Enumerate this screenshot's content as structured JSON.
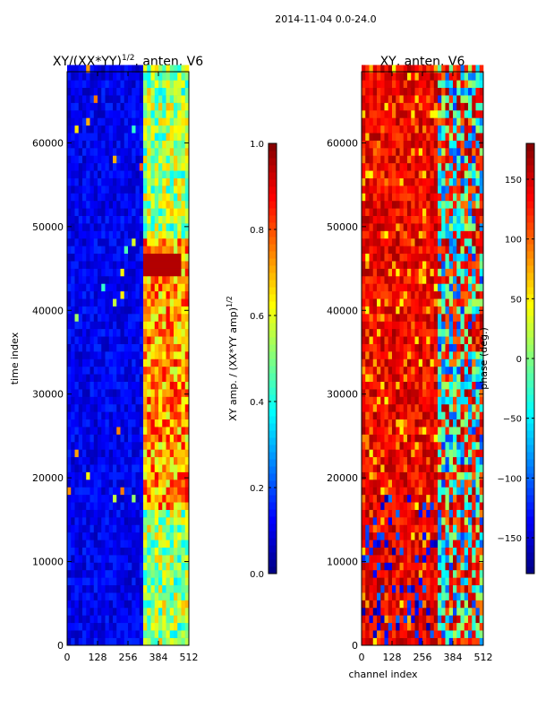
{
  "figure": {
    "suptitle": "2014-11-04 0.0-24.0",
    "shared_xlabel": "channel index"
  },
  "chart_data": [
    {
      "type": "heatmap",
      "title": "XY/(XX*YY)^{1/2}, anten. V6",
      "title_main": "XY/(XX*YY)",
      "title_exp": "1/2",
      "title_tail": ", anten. V6",
      "xlabel": "",
      "ylabel": "time index",
      "xlim": [
        0,
        512
      ],
      "ylim": [
        0,
        68500
      ],
      "xticks": [
        0,
        128,
        256,
        384,
        512
      ],
      "yticks": [
        0,
        10000,
        20000,
        30000,
        40000,
        50000,
        60000
      ],
      "colormap": "jet",
      "colorbar": {
        "label": "XY amp. / (XX*YY amp)^{1/2}",
        "label_main": "XY amp. / (XX*YY amp)",
        "label_exp": "1/2",
        "range": [
          0.0,
          1.0
        ],
        "ticks": [
          0.0,
          0.2,
          0.4,
          0.6,
          0.8,
          1.0
        ],
        "tick_labels": [
          "0.0",
          "0.2",
          "0.4",
          "0.6",
          "0.8",
          "1.0"
        ]
      },
      "features": [
        {
          "channels": [
            320,
            512
          ],
          "description": "elevated amplitude band"
        },
        {
          "time_range": [
            43500,
            46000
          ],
          "channels": [
            320,
            480
          ],
          "value": 0.95
        }
      ]
    },
    {
      "type": "heatmap",
      "title": "XY, anten. V6",
      "xlabel": "channel index",
      "ylabel": "",
      "xlim": [
        0,
        512
      ],
      "ylim": [
        0,
        68500
      ],
      "xticks": [
        0,
        128,
        256,
        384,
        512
      ],
      "yticks": [
        0,
        10000,
        20000,
        30000,
        40000,
        50000,
        60000
      ],
      "colormap": "jet",
      "colorbar": {
        "label": "phase (deg.)",
        "range": [
          -180,
          180
        ],
        "ticks": [
          -150,
          -100,
          -50,
          0,
          50,
          100,
          150
        ],
        "tick_labels": [
          "−150",
          "−100",
          "−50",
          "0",
          "50",
          "100",
          "150"
        ]
      },
      "features": [
        {
          "channels": [
            0,
            320
          ],
          "description": "mostly 100-150 deg phase"
        },
        {
          "channels": [
            320,
            512
          ],
          "description": "mixed phase, negative patches"
        }
      ]
    }
  ]
}
